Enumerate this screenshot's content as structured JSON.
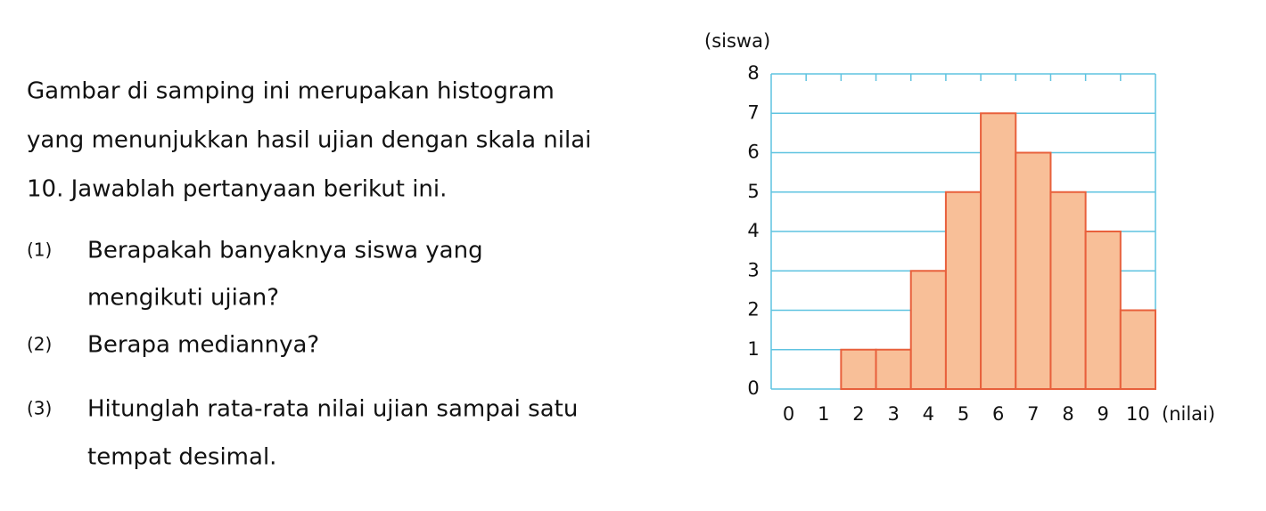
{
  "intro": [
    "Gambar di samping ini merupakan histogram",
    "yang menunjukkan hasil ujian dengan skala nilai",
    "10. Jawablah pertanyaan berikut ini."
  ],
  "questions": [
    {
      "number": "(1)",
      "lines": [
        "Berapakah banyaknya siswa yang",
        "mengikuti ujian?"
      ]
    },
    {
      "number": "(2)",
      "lines": [
        "Berapa mediannya?"
      ]
    },
    {
      "number": "(3)",
      "lines": [
        "Hitunglah rata-rata nilai ujian sampai satu",
        "tempat desimal."
      ]
    }
  ],
  "chart_data": {
    "type": "bar",
    "y_label": "(siswa)",
    "x_label": "(nilai)",
    "x": [
      0,
      1,
      2,
      3,
      4,
      5,
      6,
      7,
      8,
      9,
      10
    ],
    "values": [
      0,
      0,
      1,
      1,
      3,
      5,
      7,
      6,
      5,
      4,
      2
    ],
    "color": "#f8bf98",
    "edge_color": "#e8603c",
    "grid_color": "#5fc3e0",
    "xlim": [
      -0.5,
      10.5
    ],
    "ylim": [
      0,
      8
    ],
    "yticks": [
      0,
      1,
      2,
      3,
      4,
      5,
      6,
      7,
      8
    ],
    "grid": true
  }
}
